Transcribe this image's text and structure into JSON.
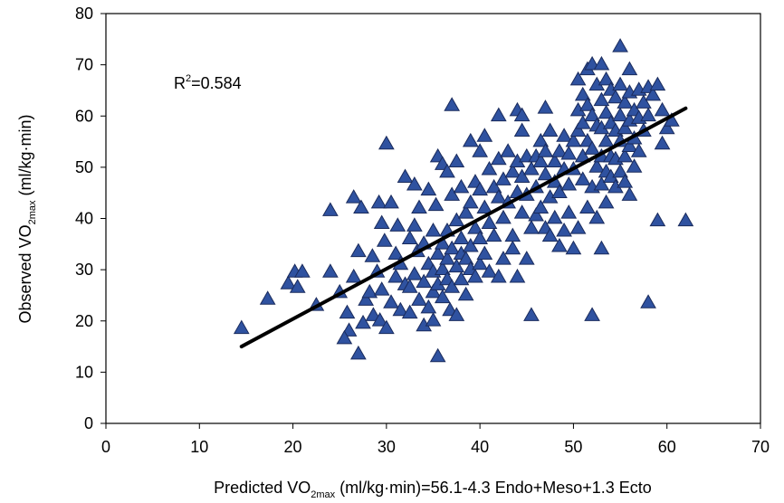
{
  "chart_data": {
    "type": "scatter",
    "title": "",
    "xlabel": {
      "pre": "Predicted VO",
      "sub": "2max",
      "post": " (ml/kg·min)=56.1-4.3 Endo+Meso+1.3 Ecto"
    },
    "ylabel": {
      "pre": "Observed VO",
      "sub": "2max",
      "post": " (ml/kg·min)"
    },
    "annotation": {
      "pre": "R",
      "sup": "2",
      "post": "=0.584"
    },
    "xlim": [
      0,
      70
    ],
    "ylim": [
      0,
      80
    ],
    "xticks": [
      0,
      10,
      20,
      30,
      40,
      50,
      60,
      70
    ],
    "yticks": [
      0,
      10,
      20,
      30,
      40,
      50,
      60,
      70,
      80
    ],
    "grid": false,
    "marker": {
      "shape": "triangle",
      "fill": "#2f52a0",
      "stroke": "#1a2b5c"
    },
    "fit_line": {
      "x": [
        14.5,
        62
      ],
      "y": [
        15,
        61.5
      ],
      "color": "#000000"
    },
    "points": [
      [
        14.5,
        18.5
      ],
      [
        17.3,
        24.2
      ],
      [
        19.5,
        27.2
      ],
      [
        20.2,
        29.5
      ],
      [
        21,
        29.5
      ],
      [
        20.5,
        26.5
      ],
      [
        22.5,
        23
      ],
      [
        24,
        41.5
      ],
      [
        24,
        29.5
      ],
      [
        25,
        25.5
      ],
      [
        26,
        18
      ],
      [
        25.8,
        21.5
      ],
      [
        25.5,
        16.5
      ],
      [
        26.5,
        44
      ],
      [
        26.5,
        28.5
      ],
      [
        27,
        33.5
      ],
      [
        27.3,
        42
      ],
      [
        27,
        13.5
      ],
      [
        27.5,
        19.5
      ],
      [
        27.8,
        24
      ],
      [
        28.2,
        25.5
      ],
      [
        28.5,
        32.5
      ],
      [
        28.6,
        21
      ],
      [
        29,
        29.5
      ],
      [
        29.2,
        43
      ],
      [
        29.3,
        20
      ],
      [
        29.5,
        26
      ],
      [
        29.5,
        39
      ],
      [
        29.8,
        35.5
      ],
      [
        30,
        54.5
      ],
      [
        30.5,
        43
      ],
      [
        30,
        18.5
      ],
      [
        30.5,
        23.5
      ],
      [
        31,
        28.5
      ],
      [
        31,
        33
      ],
      [
        31.2,
        38.5
      ],
      [
        31.5,
        31
      ],
      [
        31.5,
        22
      ],
      [
        32,
        27
      ],
      [
        32,
        48
      ],
      [
        32.5,
        36
      ],
      [
        32.5,
        26.5
      ],
      [
        32.5,
        21.5
      ],
      [
        33,
        46.5
      ],
      [
        33,
        38.5
      ],
      [
        33,
        29
      ],
      [
        33.3,
        33.5
      ],
      [
        33.5,
        42
      ],
      [
        33.5,
        24
      ],
      [
        34,
        35
      ],
      [
        34,
        27.5
      ],
      [
        34,
        19
      ],
      [
        34.5,
        45.5
      ],
      [
        34.5,
        31
      ],
      [
        34.5,
        22.5
      ],
      [
        35,
        37.5
      ],
      [
        35,
        29.5
      ],
      [
        35,
        25.5
      ],
      [
        35,
        20
      ],
      [
        35.3,
        42.5
      ],
      [
        35.5,
        13
      ],
      [
        35.5,
        52
      ],
      [
        35.5,
        33
      ],
      [
        35.5,
        27
      ],
      [
        36,
        50.5
      ],
      [
        36,
        35
      ],
      [
        36,
        30
      ],
      [
        36,
        24.5
      ],
      [
        36.5,
        49
      ],
      [
        36.5,
        37.5
      ],
      [
        36.5,
        32
      ],
      [
        36.5,
        28
      ],
      [
        36.8,
        22
      ],
      [
        37,
        62
      ],
      [
        37,
        44.5
      ],
      [
        37,
        34
      ],
      [
        37,
        26.5
      ],
      [
        37.5,
        51
      ],
      [
        37.5,
        39.5
      ],
      [
        37.5,
        30.5
      ],
      [
        37.5,
        21
      ],
      [
        38,
        46
      ],
      [
        38,
        36
      ],
      [
        38,
        33
      ],
      [
        38,
        28
      ],
      [
        38.5,
        41
      ],
      [
        38.5,
        32
      ],
      [
        38.5,
        25
      ],
      [
        39,
        55
      ],
      [
        39,
        43
      ],
      [
        39,
        34.5
      ],
      [
        39,
        30
      ],
      [
        39.5,
        47
      ],
      [
        39.5,
        38
      ],
      [
        39.5,
        28.5
      ],
      [
        40,
        53
      ],
      [
        40,
        45.5
      ],
      [
        40,
        36
      ],
      [
        40,
        31
      ],
      [
        40.5,
        56
      ],
      [
        40.5,
        42
      ],
      [
        40.5,
        33
      ],
      [
        41,
        49.5
      ],
      [
        41,
        39
      ],
      [
        41,
        29.5
      ],
      [
        41.5,
        46
      ],
      [
        41.5,
        36.5
      ],
      [
        42,
        60
      ],
      [
        42,
        51.5
      ],
      [
        42,
        44
      ],
      [
        42,
        28.5
      ],
      [
        42.5,
        47.5
      ],
      [
        42.5,
        40
      ],
      [
        42.5,
        32
      ],
      [
        43,
        53
      ],
      [
        43,
        43
      ],
      [
        43.5,
        49
      ],
      [
        43.5,
        36.5
      ],
      [
        43.5,
        34
      ],
      [
        44,
        61
      ],
      [
        44,
        51
      ],
      [
        44,
        45
      ],
      [
        44,
        28.5
      ],
      [
        44.5,
        60
      ],
      [
        44.5,
        57
      ],
      [
        44.5,
        48
      ],
      [
        44.5,
        41
      ],
      [
        45,
        52
      ],
      [
        45,
        44.5
      ],
      [
        45,
        32
      ],
      [
        45.5,
        49.5
      ],
      [
        45.5,
        21
      ],
      [
        45.5,
        38
      ],
      [
        46,
        52
      ],
      [
        46,
        46
      ],
      [
        46,
        40.5
      ],
      [
        46.5,
        51
      ],
      [
        46.5,
        55
      ],
      [
        46.5,
        42
      ],
      [
        47,
        61.5
      ],
      [
        47,
        53
      ],
      [
        47,
        48.5
      ],
      [
        47,
        38
      ],
      [
        47.5,
        57
      ],
      [
        47.5,
        44
      ],
      [
        47.5,
        36.5
      ],
      [
        48,
        51
      ],
      [
        48,
        47
      ],
      [
        48,
        40
      ],
      [
        48.5,
        53
      ],
      [
        48.5,
        45
      ],
      [
        48.5,
        34.5
      ],
      [
        49,
        56
      ],
      [
        49,
        49.5
      ],
      [
        49,
        37.5
      ],
      [
        49.5,
        52.5
      ],
      [
        49.5,
        46.5
      ],
      [
        49.5,
        41
      ],
      [
        50,
        55
      ],
      [
        50,
        49.5
      ],
      [
        50,
        34
      ],
      [
        50.5,
        67
      ],
      [
        50.5,
        61
      ],
      [
        50.5,
        57
      ],
      [
        50.5,
        38
      ],
      [
        51,
        64
      ],
      [
        51,
        58.5
      ],
      [
        51,
        52
      ],
      [
        51,
        47.5
      ],
      [
        51.5,
        69
      ],
      [
        51.5,
        62
      ],
      [
        51.5,
        55
      ],
      [
        51.5,
        42
      ],
      [
        52,
        70
      ],
      [
        52,
        60
      ],
      [
        52,
        53.5
      ],
      [
        52,
        46
      ],
      [
        52,
        21
      ],
      [
        52.5,
        66
      ],
      [
        52.5,
        58
      ],
      [
        52.5,
        50
      ],
      [
        52.5,
        40
      ],
      [
        53,
        70
      ],
      [
        53,
        63
      ],
      [
        53,
        57.5
      ],
      [
        53,
        52
      ],
      [
        53,
        46.5
      ],
      [
        53,
        34
      ],
      [
        53.5,
        67
      ],
      [
        53.5,
        60.5
      ],
      [
        53.5,
        55
      ],
      [
        53.5,
        49
      ],
      [
        53.5,
        43
      ],
      [
        54,
        65
      ],
      [
        54,
        58.5
      ],
      [
        54,
        52
      ],
      [
        54,
        48
      ],
      [
        54.5,
        63.5
      ],
      [
        54.5,
        57
      ],
      [
        54.5,
        51.5
      ],
      [
        54.5,
        46
      ],
      [
        55,
        73.5
      ],
      [
        55,
        66
      ],
      [
        55,
        60
      ],
      [
        55,
        55
      ],
      [
        55,
        49
      ],
      [
        55.5,
        62.5
      ],
      [
        55.5,
        57.5
      ],
      [
        55.5,
        52
      ],
      [
        55.5,
        47
      ],
      [
        56,
        69
      ],
      [
        56,
        64.5
      ],
      [
        56,
        59
      ],
      [
        56,
        54
      ],
      [
        56,
        44.5
      ],
      [
        56.5,
        61
      ],
      [
        56.5,
        55.5
      ],
      [
        56.5,
        50
      ],
      [
        57,
        65
      ],
      [
        57,
        59.5
      ],
      [
        57,
        53
      ],
      [
        57.5,
        62.5
      ],
      [
        57.5,
        57
      ],
      [
        58,
        65.5
      ],
      [
        58,
        60
      ],
      [
        58,
        23.5
      ],
      [
        58.5,
        64
      ],
      [
        59,
        66
      ],
      [
        59,
        39.5
      ],
      [
        59.5,
        61
      ],
      [
        59.5,
        54.5
      ],
      [
        60,
        57.5
      ],
      [
        60.5,
        59
      ],
      [
        62,
        39.5
      ]
    ]
  }
}
